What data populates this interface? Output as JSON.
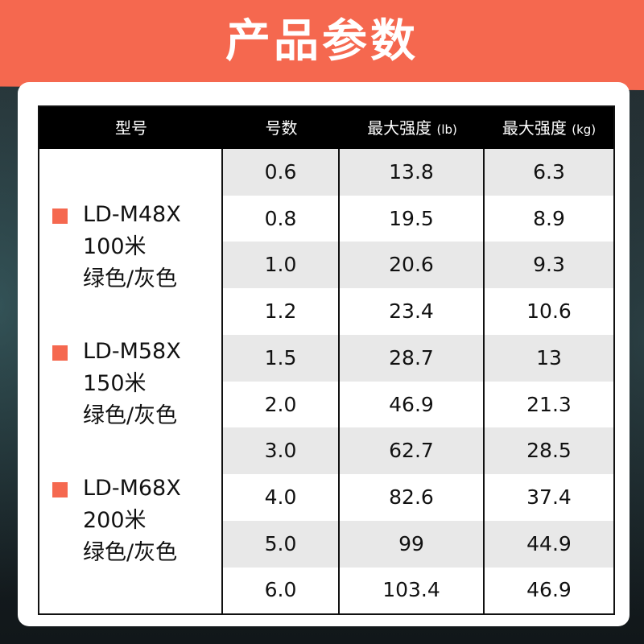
{
  "banner": {
    "title": "产品参数",
    "color": "#f5684f"
  },
  "table": {
    "headers": [
      {
        "text": "型号",
        "unit": ""
      },
      {
        "text": "号数",
        "unit": ""
      },
      {
        "text": "最大强度 ",
        "unit": "(lb)"
      },
      {
        "text": "最大强度 ",
        "unit": "(kg)"
      }
    ],
    "models": [
      {
        "code": "LD-M48X",
        "length": "100米",
        "color": "绿色/灰色"
      },
      {
        "code": "LD-M58X",
        "length": "150米",
        "color": "绿色/灰色"
      },
      {
        "code": "LD-M68X",
        "length": "200米",
        "color": "绿色/灰色"
      }
    ],
    "rows": [
      {
        "size": "0.6",
        "lb": "13.8",
        "kg": "6.3"
      },
      {
        "size": "0.8",
        "lb": "19.5",
        "kg": "8.9"
      },
      {
        "size": "1.0",
        "lb": "20.6",
        "kg": "9.3"
      },
      {
        "size": "1.2",
        "lb": "23.4",
        "kg": "10.6"
      },
      {
        "size": "1.5",
        "lb": "28.7",
        "kg": "13"
      },
      {
        "size": "2.0",
        "lb": "46.9",
        "kg": "21.3"
      },
      {
        "size": "3.0",
        "lb": "62.7",
        "kg": "28.5"
      },
      {
        "size": "4.0",
        "lb": "82.6",
        "kg": "37.4"
      },
      {
        "size": "5.0",
        "lb": "99",
        "kg": "44.9"
      },
      {
        "size": "6.0",
        "lb": "103.4",
        "kg": "46.9"
      }
    ]
  }
}
